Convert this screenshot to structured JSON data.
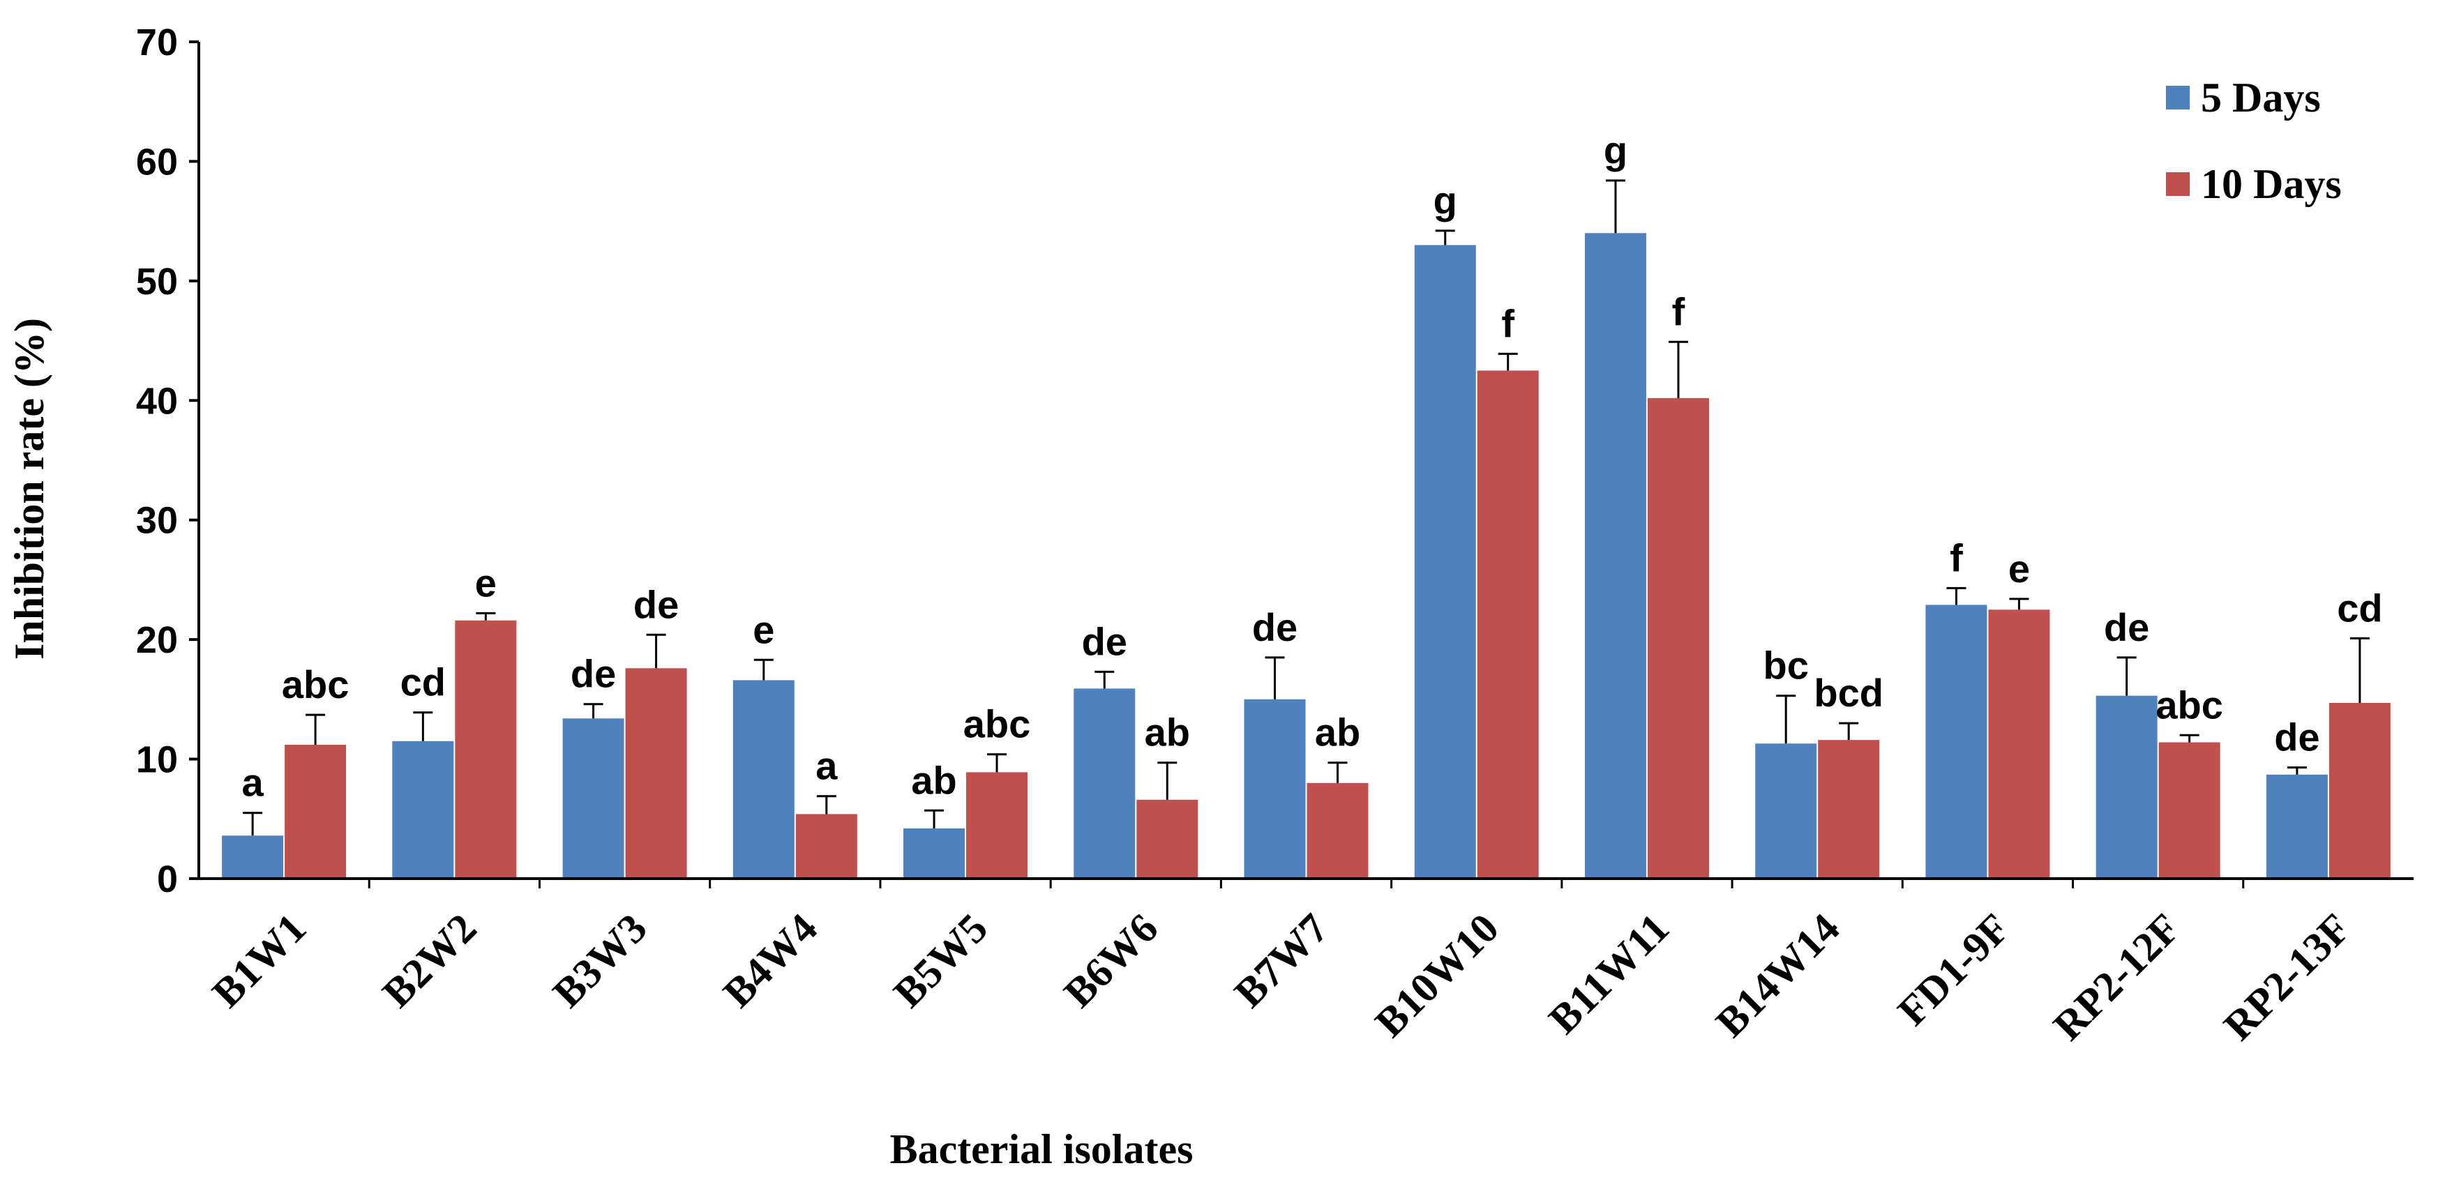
{
  "chart_data": {
    "type": "bar",
    "title": "",
    "xlabel": "Bacterial isolates",
    "ylabel": "Inhibition rate (%)",
    "ylim": [
      0,
      70
    ],
    "yticks": [
      0,
      10,
      20,
      30,
      40,
      50,
      60,
      70
    ],
    "legend_position": "top-right",
    "categories": [
      "B1W1",
      "B2W2",
      "B3W3",
      "B4W4",
      "B5W5",
      "B6W6",
      "B7W7",
      "B10W10",
      "B11W11",
      "B14W14",
      "FD1-9F",
      "RP2-12F",
      "RP2-13F"
    ],
    "series": [
      {
        "name": "5 Days",
        "color": "#4F81BD",
        "values": [
          3.6,
          11.5,
          13.4,
          16.6,
          4.2,
          15.9,
          15.0,
          53.0,
          54.0,
          11.3,
          22.9,
          15.3,
          8.7
        ],
        "errors": [
          1.9,
          2.4,
          1.2,
          1.7,
          1.5,
          1.4,
          3.5,
          1.2,
          4.4,
          4.0,
          1.4,
          3.2,
          0.6
        ],
        "significance": [
          "a",
          "cd",
          "de",
          "e",
          "ab",
          "de",
          "de",
          "g",
          "g",
          "bc",
          "f",
          "de",
          "de"
        ]
      },
      {
        "name": "10 Days",
        "color": "#C0504D",
        "values": [
          11.2,
          21.6,
          17.6,
          5.4,
          8.9,
          6.6,
          8.0,
          42.5,
          40.2,
          11.6,
          22.5,
          11.4,
          14.7
        ],
        "errors": [
          2.5,
          0.6,
          2.8,
          1.5,
          1.5,
          3.1,
          1.7,
          1.4,
          4.7,
          1.4,
          0.9,
          0.6,
          5.4
        ],
        "significance": [
          "abc",
          "e",
          "de",
          "a",
          "abc",
          "ab",
          "ab",
          "f",
          "f",
          "bcd",
          "e",
          "abc",
          "cd"
        ]
      }
    ]
  }
}
